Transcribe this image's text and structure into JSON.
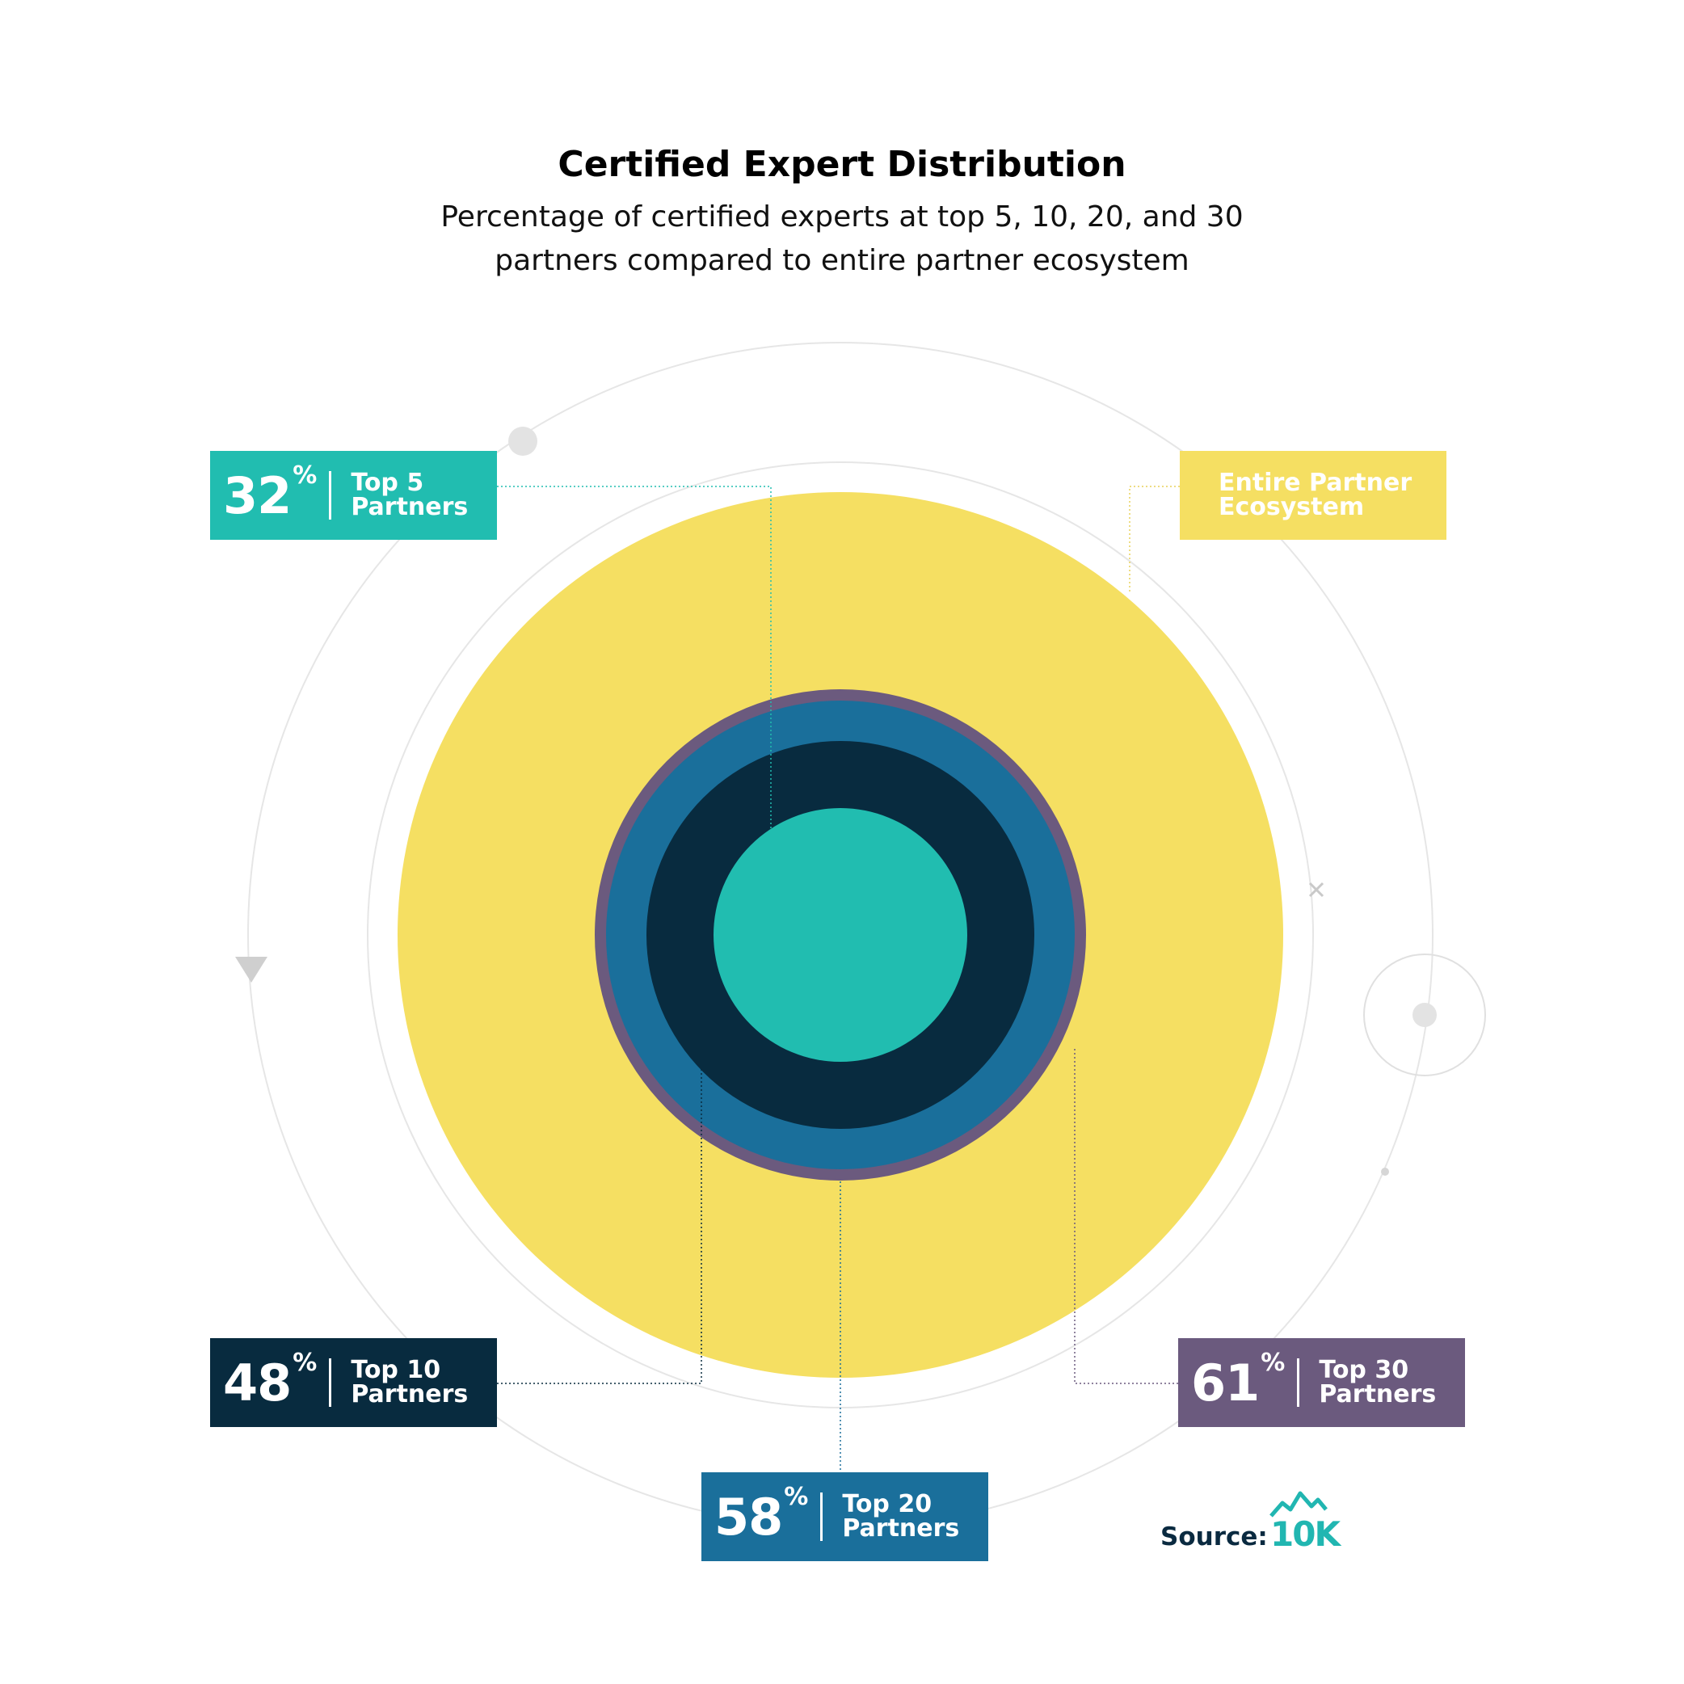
{
  "title": "Certified Expert Distribution",
  "subtitle_line1": "Percentage of certified experts at top 5, 10, 20, and 30",
  "subtitle_line2": "partners compared to entire partner ecosystem",
  "colors": {
    "top5": "#21bdb0",
    "top10": "#082b3f",
    "top20": "#1a6f9b",
    "top30": "#6b5a7e",
    "ecosystem": "#f5df62",
    "ring": "#e6e6e6"
  },
  "labels": {
    "top5": {
      "pct": "32",
      "unit": "%",
      "line1": "Top 5",
      "line2": "Partners"
    },
    "top10": {
      "pct": "48",
      "unit": "%",
      "line1": "Top 10",
      "line2": "Partners"
    },
    "top20": {
      "pct": "58",
      "unit": "%",
      "line1": "Top 20",
      "line2": "Partners"
    },
    "top30": {
      "pct": "61",
      "unit": "%",
      "line1": "Top 30",
      "line2": "Partners"
    },
    "ecosystem": {
      "line1": "Entire Partner",
      "line2": "Ecosystem"
    }
  },
  "source_label": "Source:",
  "brand": "10K",
  "chart_data": {
    "type": "nested-circles",
    "title": "Certified Expert Distribution",
    "series": [
      {
        "name": "Top 5 Partners",
        "value": 32
      },
      {
        "name": "Top 10 Partners",
        "value": 48
      },
      {
        "name": "Top 20 Partners",
        "value": 58
      },
      {
        "name": "Top 30 Partners",
        "value": 61
      },
      {
        "name": "Entire Partner Ecosystem",
        "value": 100
      }
    ],
    "unit": "%"
  }
}
